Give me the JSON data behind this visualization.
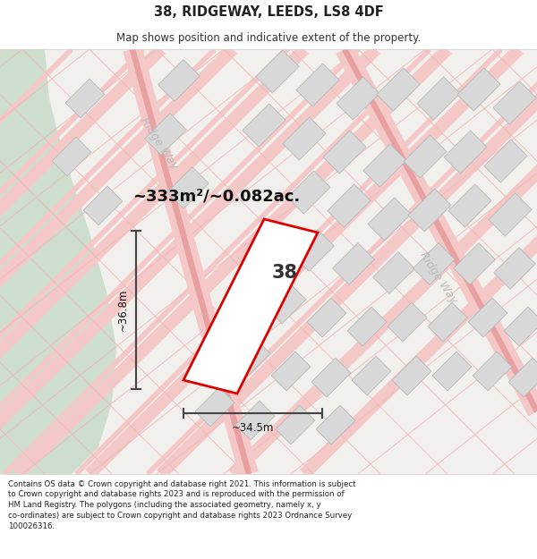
{
  "title": "38, RIDGEWAY, LEEDS, LS8 4DF",
  "subtitle": "Map shows position and indicative extent of the property.",
  "footer": "Contains OS data © Crown copyright and database right 2021. This information is subject to Crown copyright and database rights 2023 and is reproduced with the permission of HM Land Registry. The polygons (including the associated geometry, namely x, y co-ordinates) are subject to Crown copyright and database rights 2023 Ordnance Survey 100026316.",
  "area_label": "~333m²/~0.082ac.",
  "number_label": "38",
  "width_label": "~34.5m",
  "height_label": "~36.8m",
  "map_bg": "#f0eeeb",
  "road_fill": "#f5c8c8",
  "road_edge": "#e8a0a0",
  "building_color": "#d8d8d8",
  "building_outline": "#b8b8b8",
  "highlight_color": "#dd0000",
  "highlight_fill": "#ffffff",
  "green_area": "#cddece",
  "road_label_color": "#bbbbbb",
  "plot_line_color": "#f0b8b8",
  "title_fontsize": 10.5,
  "subtitle_fontsize": 8.5,
  "footer_fontsize": 6.2,
  "area_fontsize": 13,
  "number_fontsize": 15,
  "dim_fontsize": 8.5,
  "road_label_fontsize": 9
}
